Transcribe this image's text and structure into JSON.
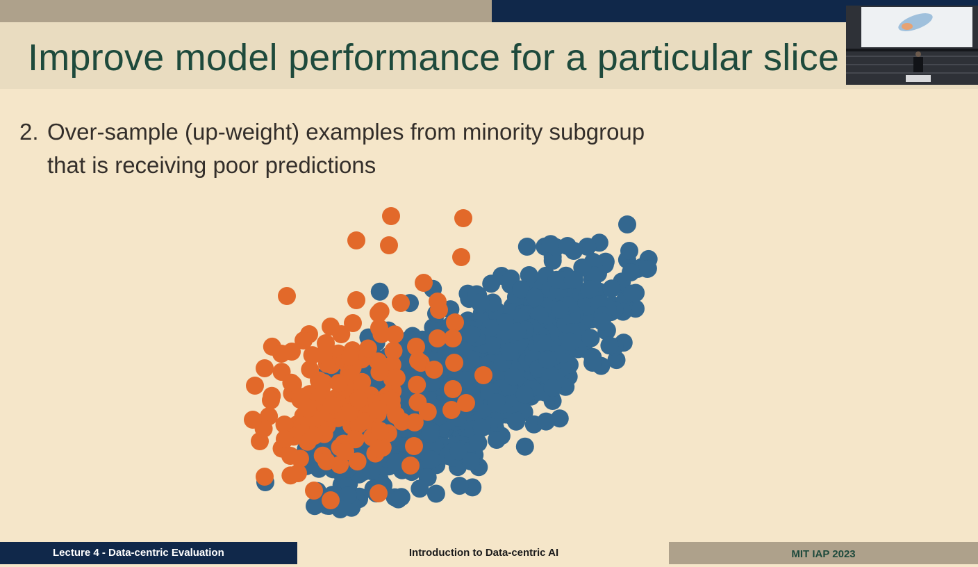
{
  "slide": {
    "title": "Improve model performance for a particular slice",
    "bullet_number": "2.",
    "bullet_line1": "Over-sample (up-weight) examples from minority subgroup",
    "bullet_line2": "that is receiving poor predictions"
  },
  "footer": {
    "left": "Lecture 4 - Data-centric Evaluation",
    "center": "Introduction to Data-centric AI",
    "right": "MIT IAP 2023"
  },
  "colors": {
    "majority": "#33678f",
    "minority": "#e2692a",
    "title": "#1e4a3c",
    "dark_band": "#10284a",
    "tan_band": "#aea18b",
    "background": "#f5e6c9"
  },
  "chart_data": {
    "type": "scatter",
    "title": "",
    "xlabel": "",
    "ylabel": "",
    "axes_visible": false,
    "grid": false,
    "legend": "none",
    "series": [
      {
        "color": "#33678f",
        "count": 1500,
        "trend": "positive correlation",
        "note": "large dense cluster"
      },
      {
        "color": "#e2692a",
        "count": 160,
        "trend": "positive correlation, shifted up-left",
        "note": "smaller subgroup overlapping lower-left of blue cluster"
      }
    ]
  }
}
